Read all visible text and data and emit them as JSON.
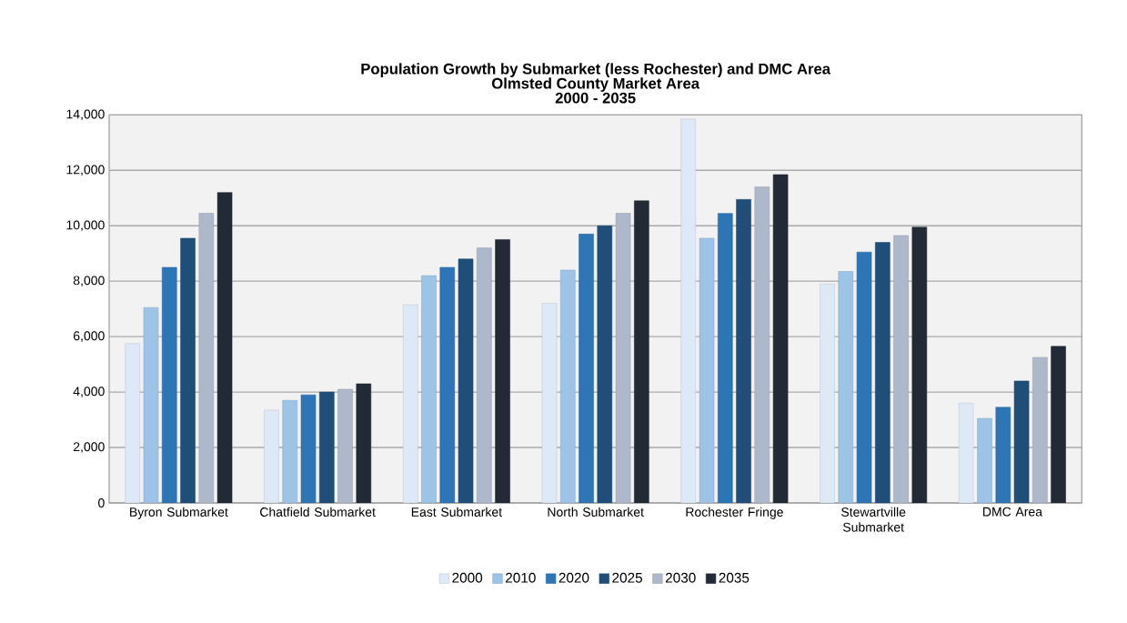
{
  "chart_data": {
    "type": "bar",
    "title": "Population Growth by Submarket (less Rochester) and DMC Area",
    "subtitle": "Olmsted County Market Area",
    "annotations": [
      "2000 - 2035"
    ],
    "categories": [
      "Byron Submarket",
      "Chatfield Submarket",
      "East Submarket",
      "North Submarket",
      "Rochester Fringe",
      "Stewartville Submarket",
      "DMC Area"
    ],
    "series": [
      {
        "name": "2000",
        "color": "#dde9f6",
        "values": [
          5750,
          3350,
          7150,
          7200,
          13850,
          7900,
          3600
        ]
      },
      {
        "name": "2010",
        "color": "#9dc3e6",
        "values": [
          7050,
          3700,
          8200,
          8400,
          9550,
          8350,
          3050
        ]
      },
      {
        "name": "2020",
        "color": "#2e75b6",
        "values": [
          8500,
          3900,
          8500,
          9700,
          10450,
          9050,
          3450
        ]
      },
      {
        "name": "2025",
        "color": "#1f4e79",
        "values": [
          9550,
          4000,
          8800,
          10000,
          10950,
          9400,
          4400
        ]
      },
      {
        "name": "2030",
        "color": "#adb9ca",
        "values": [
          10450,
          4100,
          9200,
          10450,
          11400,
          9650,
          5250
        ]
      },
      {
        "name": "2035",
        "color": "#222a35",
        "values": [
          11200,
          4300,
          9500,
          10900,
          11850,
          9950,
          5650
        ]
      }
    ],
    "ylim": [
      0,
      14000
    ],
    "yticks": [
      0,
      {
        "value": 2000,
        "label": "2,000"
      },
      {
        "value": 4000,
        "label": "4,000"
      },
      {
        "value": 6000,
        "label": "6,000"
      },
      {
        "value": 8000,
        "label": "8,000"
      },
      {
        "value": 10000,
        "label": "10,000"
      },
      {
        "value": 12000,
        "label": "12,000"
      },
      {
        "value": 14000,
        "label": "14,000"
      }
    ],
    "grid": "y",
    "legend": "bottom"
  }
}
